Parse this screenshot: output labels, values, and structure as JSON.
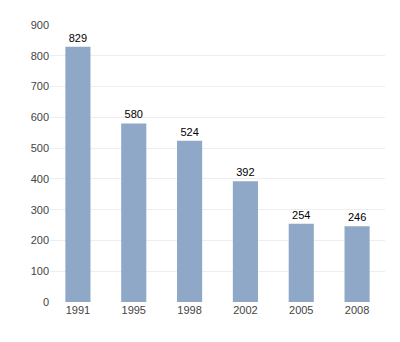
{
  "chart_data": {
    "type": "bar",
    "categories": [
      "1991",
      "1995",
      "1998",
      "2002",
      "2005",
      "2008"
    ],
    "values": [
      829,
      580,
      524,
      392,
      254,
      246
    ],
    "color": "#8fa8c8",
    "ylim": [
      0,
      900
    ],
    "yticks": [
      0,
      100,
      200,
      300,
      400,
      500,
      600,
      700,
      800,
      900
    ],
    "grid": true,
    "data_labels": true
  }
}
